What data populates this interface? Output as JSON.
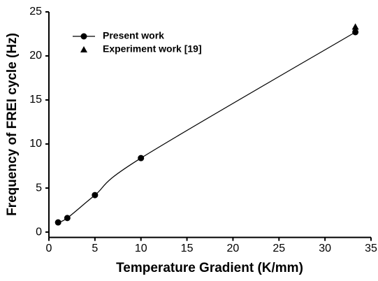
{
  "chart_data": {
    "type": "line",
    "xlabel": "Temperature Gradient (K/mm)",
    "ylabel": "Frequency of FREI cycle (Hz)",
    "xlim": [
      0,
      35
    ],
    "xticks": [
      0,
      5,
      10,
      15,
      20,
      25,
      30,
      35
    ],
    "ylim": [
      -0.6,
      25
    ],
    "yticks": [
      0,
      5,
      10,
      15,
      20,
      25
    ],
    "series": [
      {
        "name": "Present work",
        "color": "#000000",
        "marker": "circle",
        "line": true,
        "x": [
          1,
          2,
          5,
          10,
          33.3
        ],
        "values": [
          1.1,
          1.6,
          4.2,
          8.4,
          22.7
        ]
      },
      {
        "name": "Experiment work [19]",
        "color": "#000000",
        "marker": "triangle",
        "line": false,
        "x": [
          33.3
        ],
        "values": [
          23.3
        ]
      }
    ]
  }
}
